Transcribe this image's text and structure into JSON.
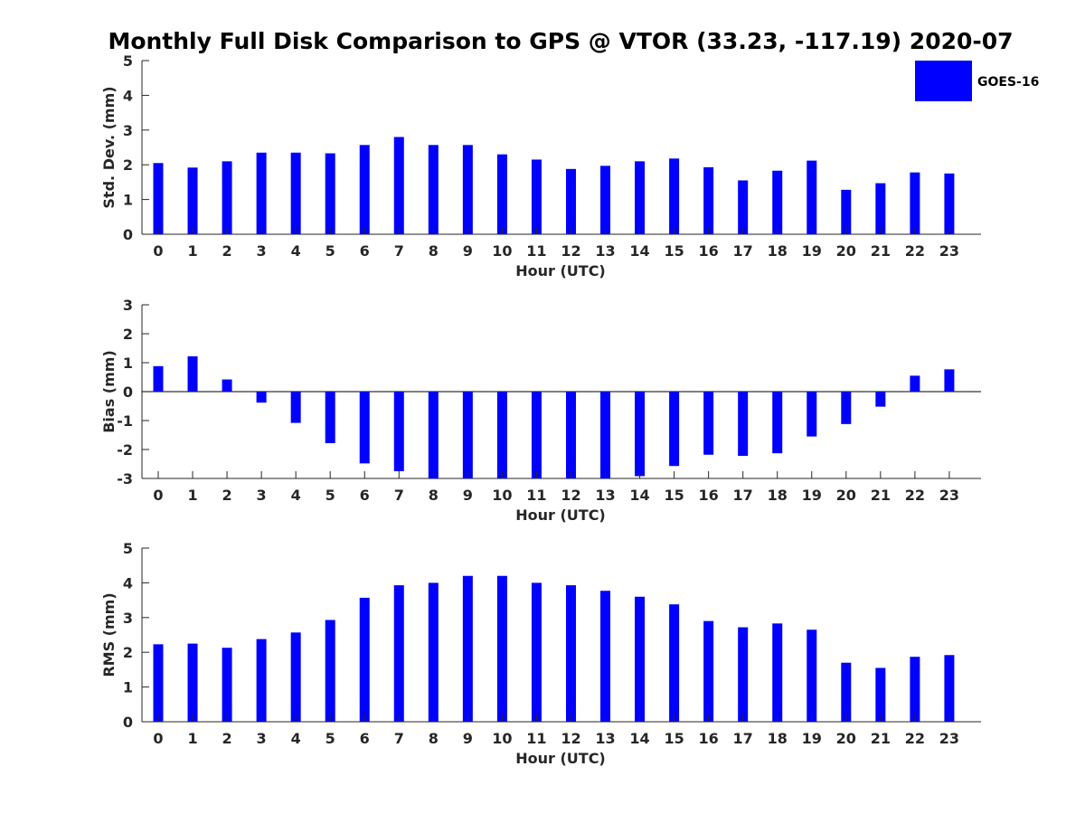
{
  "title": "Monthly Full Disk Comparison to GPS @ VTOR (33.23, -117.19) 2020-07",
  "legend": {
    "label": "GOES-16",
    "color": "#0000ff"
  },
  "chart_data": [
    {
      "type": "bar",
      "ylabel": "Std. Dev. (mm)",
      "xlabel": "Hour (UTC)",
      "categories": [
        "0",
        "1",
        "2",
        "3",
        "4",
        "5",
        "6",
        "7",
        "8",
        "9",
        "10",
        "11",
        "12",
        "13",
        "14",
        "15",
        "16",
        "17",
        "18",
        "19",
        "20",
        "21",
        "22",
        "23"
      ],
      "series": [
        {
          "values": [
            2.05,
            1.92,
            2.1,
            2.35,
            2.35,
            2.33,
            2.57,
            2.8,
            2.57,
            2.57,
            2.3,
            2.15,
            1.88,
            1.97,
            2.1,
            2.18,
            1.93,
            1.55,
            1.83,
            2.12,
            1.28,
            1.47,
            1.78,
            1.75
          ],
          "color": "#0000ff"
        }
      ],
      "ylim": [
        0,
        5
      ],
      "yticks": [
        "0",
        "1",
        "2",
        "3",
        "4",
        "5"
      ],
      "legend": "top-right",
      "grid": false
    },
    {
      "type": "bar",
      "ylabel": "Bias (mm)",
      "xlabel": "Hour (UTC)",
      "categories": [
        "0",
        "1",
        "2",
        "3",
        "4",
        "5",
        "6",
        "7",
        "8",
        "9",
        "10",
        "11",
        "12",
        "13",
        "14",
        "15",
        "16",
        "17",
        "18",
        "19",
        "20",
        "21",
        "22",
        "23"
      ],
      "series": [
        {
          "values": [
            0.88,
            1.22,
            0.42,
            -0.38,
            -1.08,
            -1.78,
            -2.48,
            -2.75,
            -3.0,
            -3.0,
            -3.0,
            -3.0,
            -3.0,
            -3.0,
            -2.92,
            -2.57,
            -2.18,
            -2.22,
            -2.13,
            -1.55,
            -1.12,
            -0.52,
            0.55,
            0.77
          ],
          "color": "#0000ff"
        }
      ],
      "ylim": [
        -3,
        3
      ],
      "yticks": [
        "-3",
        "-2",
        "-1",
        "0",
        "1",
        "2",
        "3"
      ],
      "grid": false
    },
    {
      "type": "bar",
      "ylabel": "RMS (mm)",
      "xlabel": "Hour (UTC)",
      "categories": [
        "0",
        "1",
        "2",
        "3",
        "4",
        "5",
        "6",
        "7",
        "8",
        "9",
        "10",
        "11",
        "12",
        "13",
        "14",
        "15",
        "16",
        "17",
        "18",
        "19",
        "20",
        "21",
        "22",
        "23"
      ],
      "series": [
        {
          "values": [
            2.23,
            2.25,
            2.13,
            2.38,
            2.57,
            2.93,
            3.57,
            3.93,
            4.0,
            4.2,
            4.2,
            4.0,
            3.93,
            3.77,
            3.6,
            3.38,
            2.9,
            2.72,
            2.83,
            2.65,
            1.7,
            1.55,
            1.87,
            1.92
          ],
          "color": "#0000ff"
        }
      ],
      "ylim": [
        0,
        5
      ],
      "yticks": [
        "0",
        "1",
        "2",
        "3",
        "4",
        "5"
      ],
      "grid": false
    }
  ]
}
